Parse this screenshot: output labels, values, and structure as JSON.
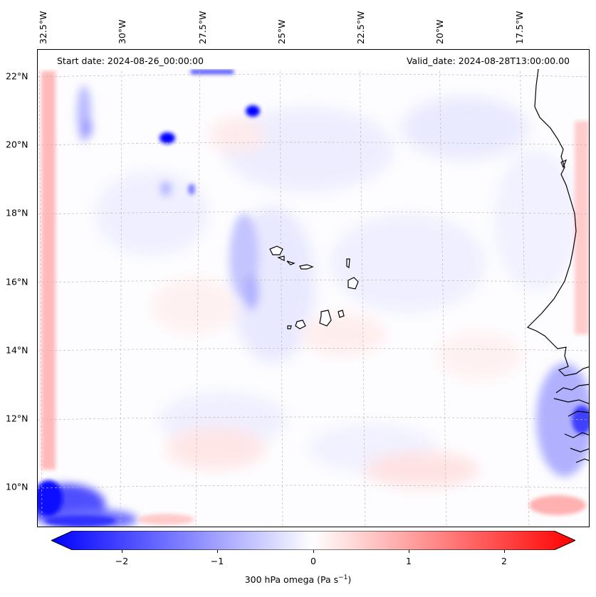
{
  "header": {
    "start_date": "Start date: 2024-08-26_00:00:00",
    "valid_date": "Valid_date: 2024-08-28T13:00:00.00"
  },
  "axes": {
    "lon_labels": [
      "32.5°W",
      "30°W",
      "27.5°W",
      "25°W",
      "22.5°W",
      "20°W",
      "17.5°W"
    ],
    "lat_labels": [
      "22°N",
      "20°N",
      "18°N",
      "16°N",
      "14°N",
      "12°N",
      "10°N"
    ],
    "gridlines": true
  },
  "colorbar": {
    "label": "300 hPa omega (Pa s",
    "label_sup": "−1",
    "label_end": ")",
    "ticks": [
      "−2",
      "−1",
      "0",
      "1",
      "2"
    ],
    "range": [
      -2.7,
      2.7
    ],
    "extend": "both",
    "colormap": "bwr",
    "color_negative": "#0000ff",
    "color_zero": "#ffffff",
    "color_positive": "#ff0000"
  },
  "map": {
    "variable": "300 hPa omega",
    "coastline_color": "#000000",
    "gridline_color": "#c8b4b4"
  }
}
